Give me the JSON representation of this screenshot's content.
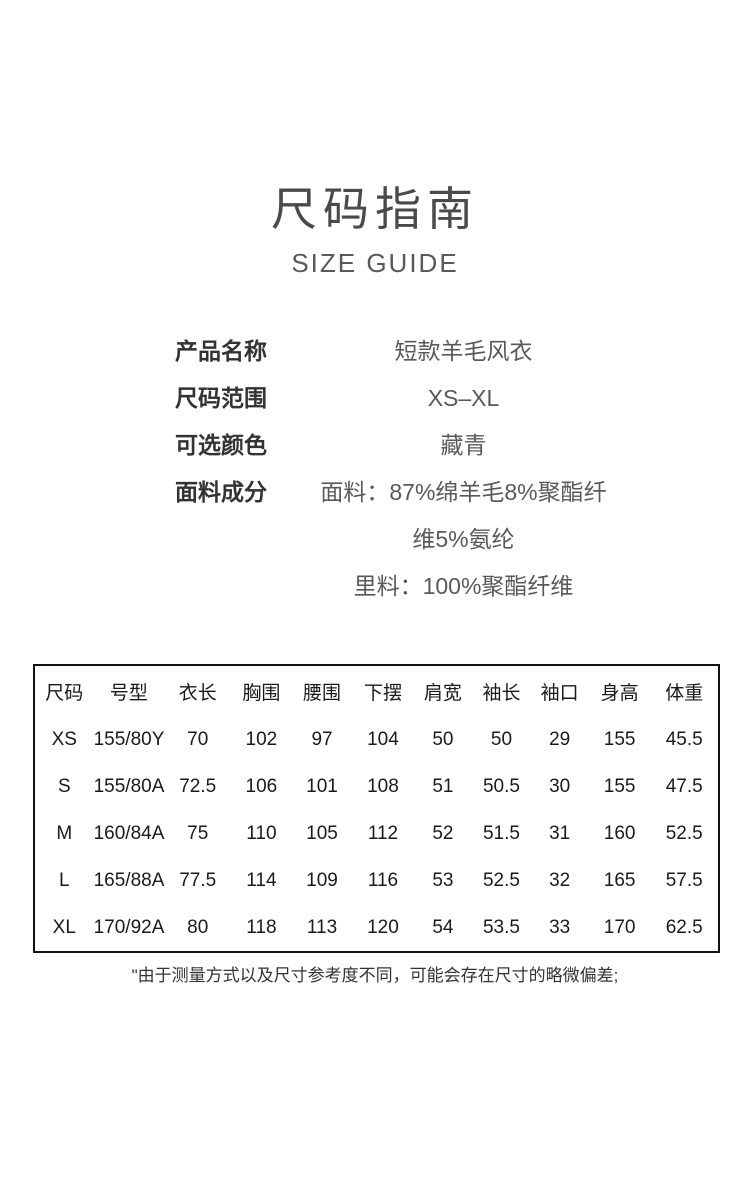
{
  "page": {
    "title": "尺码指南",
    "subtitle": "SIZE GUIDE"
  },
  "product_info": {
    "rows": [
      {
        "label": "产品名称",
        "value_lines": [
          "短款羊毛风衣"
        ]
      },
      {
        "label": "尺码范围",
        "value_lines": [
          "XS–XL"
        ]
      },
      {
        "label": "可选颜色",
        "value_lines": [
          "藏青"
        ]
      },
      {
        "label": "面料成分",
        "value_lines": [
          "面料：87%绵羊毛8%聚酯纤",
          "维5%氨纶",
          "里料：100%聚酯纤维"
        ]
      }
    ]
  },
  "size_table": {
    "columns": [
      "尺码",
      "号型",
      "衣长",
      "胸围",
      "腰围",
      "下摆",
      "肩宽",
      "袖长",
      "袖口",
      "身高",
      "体重"
    ],
    "rows": [
      [
        "XS",
        "155/80Y",
        "70",
        "102",
        "97",
        "104",
        "50",
        "50",
        "29",
        "155",
        "45.5"
      ],
      [
        "S",
        "155/80A",
        "72.5",
        "106",
        "101",
        "108",
        "51",
        "50.5",
        "30",
        "155",
        "47.5"
      ],
      [
        "M",
        "160/84A",
        "75",
        "110",
        "105",
        "112",
        "52",
        "51.5",
        "31",
        "160",
        "52.5"
      ],
      [
        "L",
        "165/88A",
        "77.5",
        "114",
        "109",
        "116",
        "53",
        "52.5",
        "32",
        "165",
        "57.5"
      ],
      [
        "XL",
        "170/92A",
        "80",
        "118",
        "113",
        "120",
        "54",
        "53.5",
        "33",
        "170",
        "62.5"
      ]
    ]
  },
  "footer": {
    "note": "\"由于测量方式以及尺寸参考度不同，可能会存在尺寸的略微偏差;"
  },
  "colors": {
    "background": "#ffffff",
    "title_text": "#4a4a4a",
    "label_text": "#333333",
    "value_text": "#595959",
    "table_text": "#1a1a1a",
    "table_border": "#111111"
  }
}
